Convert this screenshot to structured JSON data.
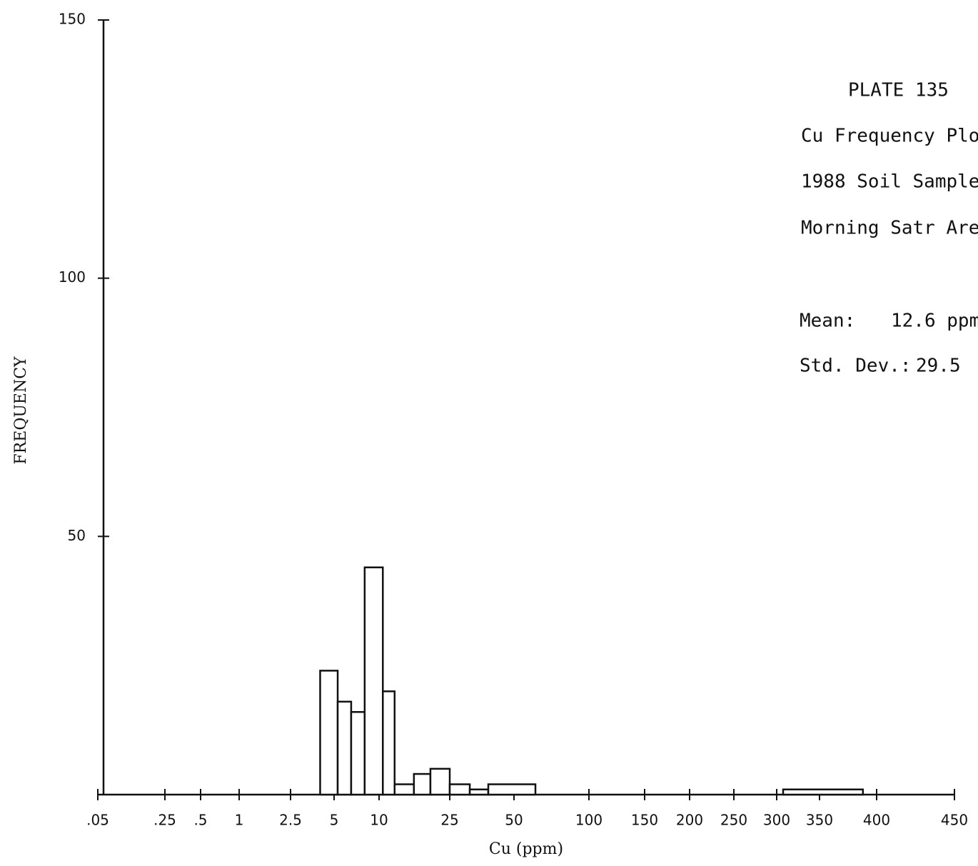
{
  "chart_data": {
    "type": "histogram",
    "x_label": "Cu (ppm)",
    "y_label": "FREQUENCY",
    "annotations": [
      "PLATE  135",
      "Cu Frequency Plo",
      "1988 Soil Sample",
      "Morning Satr Are",
      "Mean:",
      "12.6 ppm",
      "Std. Dev.:",
      "29.5"
    ],
    "bins": [
      4.2,
      5.4,
      6.9,
      8.4,
      10.8,
      13.3,
      17.4,
      20.9,
      25,
      32.8,
      40,
      64.3,
      307.5,
      388
    ],
    "counts": [
      24,
      18,
      16,
      44,
      20,
      2,
      4,
      5,
      2,
      1,
      2,
      0,
      1
    ],
    "color": "#ffffff",
    "xlim": [
      0.05,
      450
    ],
    "xticks": [
      {
        "value": 0.05,
        "label": ".05"
      },
      {
        "value": 0.25,
        "label": ".25"
      },
      {
        "value": 0.5,
        "label": ".5"
      },
      1,
      2.5,
      5,
      10,
      25,
      50,
      100,
      150,
      200,
      250,
      300,
      350,
      400,
      450
    ],
    "ylim": [
      0,
      150
    ],
    "yticks": [
      50,
      100,
      150
    ]
  }
}
